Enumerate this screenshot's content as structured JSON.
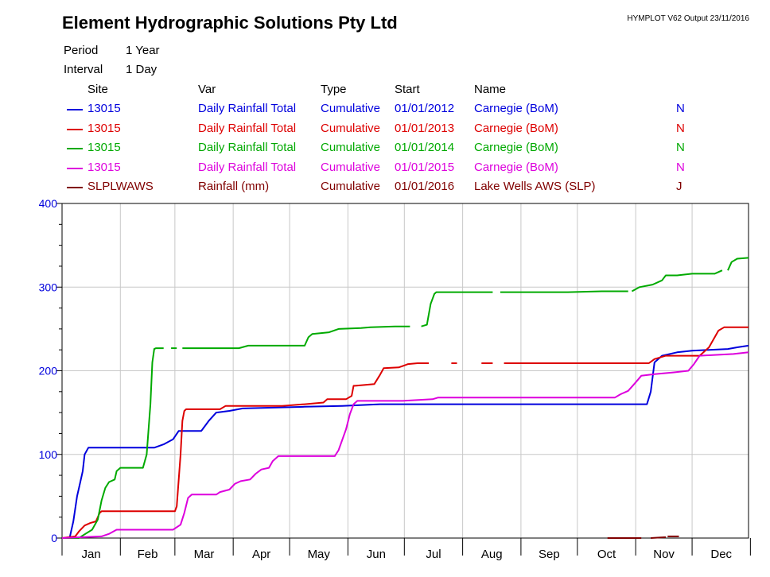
{
  "header": {
    "title": "Element Hydrographic Solutions Pty Ltd",
    "output": "HYMPLOT V62  Output 23/11/2016",
    "period_label": "Period",
    "period_value": "1 Year",
    "interval_label": "Interval",
    "interval_value": "1 Day"
  },
  "legend": {
    "columns": [
      "Site",
      "Var",
      "Type",
      "Start",
      "Name"
    ],
    "rows": [
      {
        "site": "13015",
        "var": "Daily Rainfall Total",
        "type": "Cumulative",
        "start": "01/01/2012",
        "name": "Carnegie (BoM)",
        "flag": "N",
        "color": "#0000dd"
      },
      {
        "site": "13015",
        "var": "Daily Rainfall Total",
        "type": "Cumulative",
        "start": "01/01/2013",
        "name": "Carnegie (BoM)",
        "flag": "N",
        "color": "#dd0000"
      },
      {
        "site": "13015",
        "var": "Daily Rainfall Total",
        "type": "Cumulative",
        "start": "01/01/2014",
        "name": "Carnegie (BoM)",
        "flag": "N",
        "color": "#00aa00"
      },
      {
        "site": "13015",
        "var": "Daily Rainfall Total",
        "type": "Cumulative",
        "start": "01/01/2015",
        "name": "Carnegie (BoM)",
        "flag": "N",
        "color": "#dd00dd"
      },
      {
        "site": "SLPLWAWS",
        "var": "Rainfall (mm)",
        "type": "Cumulative",
        "start": "01/01/2016",
        "name": "Lake Wells AWS (SLP)",
        "flag": "J",
        "color": "#800000"
      }
    ]
  },
  "chart_data": {
    "type": "line",
    "x_unit": "day of year",
    "xlim": [
      1,
      366
    ],
    "ylim": [
      0,
      400
    ],
    "yticks": [
      0,
      100,
      200,
      300,
      400
    ],
    "ytick_labels": [
      "0",
      "100",
      "200",
      "300",
      "400"
    ],
    "ytick_color": "#0000dd",
    "month_labels": [
      "Jan",
      "Feb",
      "Mar",
      "Apr",
      "May",
      "Jun",
      "Jul",
      "Aug",
      "Sep",
      "Oct",
      "Nov",
      "Dec"
    ],
    "grid": true,
    "series": [
      {
        "name": "13015 2012",
        "color": "#0000dd",
        "segments": [
          [
            [
              1,
              0
            ],
            [
              5,
              0
            ],
            [
              7,
              20
            ],
            [
              9,
              50
            ],
            [
              10,
              60
            ],
            [
              12,
              80
            ],
            [
              13,
              100
            ],
            [
              15,
              108
            ],
            [
              50,
              108
            ],
            [
              55,
              112
            ],
            [
              60,
              118
            ],
            [
              63,
              128
            ],
            [
              75,
              128
            ],
            [
              79,
              140
            ],
            [
              83,
              150
            ],
            [
              90,
              152
            ],
            [
              97,
              155
            ],
            [
              130,
              157
            ],
            [
              150,
              158
            ],
            [
              170,
              160
            ],
            [
              225,
              160
            ],
            [
              288,
              160
            ],
            [
              305,
              160
            ],
            [
              312,
              160
            ],
            [
              314,
              175
            ],
            [
              316,
              210
            ],
            [
              320,
              218
            ],
            [
              328,
              222
            ],
            [
              336,
              224
            ],
            [
              355,
              226
            ],
            [
              360,
              228
            ],
            [
              366,
              230
            ]
          ]
        ]
      },
      {
        "name": "13015 2013",
        "color": "#dd0000",
        "segments": [
          [
            [
              1,
              0
            ],
            [
              8,
              2
            ],
            [
              10,
              8
            ],
            [
              13,
              15
            ],
            [
              16,
              18
            ],
            [
              19,
              20
            ],
            [
              21,
              30
            ],
            [
              22,
              32
            ],
            [
              61,
              32
            ],
            [
              62,
              38
            ],
            [
              64,
              100
            ],
            [
              65,
              140
            ],
            [
              66,
              152
            ],
            [
              67,
              154
            ],
            [
              85,
              154
            ],
            [
              88,
              158
            ],
            [
              118,
              158
            ],
            [
              130,
              160
            ],
            [
              140,
              162
            ],
            [
              142,
              166
            ],
            [
              152,
              166
            ],
            [
              155,
              170
            ],
            [
              156,
              182
            ],
            [
              157,
              182
            ],
            [
              167,
              184
            ],
            [
              170,
              195
            ],
            [
              172,
              203
            ],
            [
              180,
              204
            ],
            [
              185,
              208
            ],
            [
              190,
              209
            ],
            [
              196,
              209
            ]
          ],
          [
            [
              208,
              209
            ],
            [
              211,
              209
            ]
          ],
          [
            [
              224,
              209
            ],
            [
              230,
              209
            ]
          ],
          [
            [
              236,
              209
            ],
            [
              313,
              209
            ],
            [
              316,
              214
            ],
            [
              322,
              218
            ],
            [
              340,
              218
            ],
            [
              345,
              228
            ],
            [
              350,
              248
            ],
            [
              353,
              252
            ],
            [
              366,
              252
            ]
          ]
        ]
      },
      {
        "name": "13015 2014",
        "color": "#00aa00",
        "segments": [
          [
            [
              1,
              0
            ],
            [
              10,
              0
            ],
            [
              12,
              3
            ],
            [
              17,
              10
            ],
            [
              20,
              22
            ],
            [
              22,
              45
            ],
            [
              24,
              60
            ],
            [
              26,
              67
            ],
            [
              29,
              70
            ],
            [
              30,
              80
            ],
            [
              32,
              84
            ],
            [
              44,
              84
            ],
            [
              46,
              100
            ],
            [
              48,
              160
            ],
            [
              49,
              210
            ],
            [
              50,
              226
            ],
            [
              51,
              227
            ],
            [
              55,
              227
            ]
          ],
          [
            [
              59,
              227
            ],
            [
              62,
              227
            ]
          ],
          [
            [
              65,
              227
            ],
            [
              95,
              227
            ],
            [
              100,
              230
            ],
            [
              130,
              230
            ],
            [
              132,
              240
            ],
            [
              134,
              244
            ],
            [
              143,
              246
            ],
            [
              148,
              250
            ],
            [
              160,
              251
            ],
            [
              165,
              252
            ],
            [
              178,
              253
            ],
            [
              186,
              253
            ]
          ],
          [
            [
              192,
              253
            ],
            [
              195,
              255
            ],
            [
              197,
              280
            ],
            [
              199,
              292
            ],
            [
              200,
              294
            ],
            [
              230,
              294
            ]
          ],
          [
            [
              234,
              294
            ],
            [
              270,
              294
            ],
            [
              288,
              295
            ],
            [
              302,
              295
            ]
          ],
          [
            [
              304,
              295
            ],
            [
              308,
              300
            ],
            [
              315,
              303
            ],
            [
              320,
              308
            ],
            [
              322,
              314
            ],
            [
              328,
              314
            ],
            [
              336,
              316
            ],
            [
              348,
              316
            ],
            [
              352,
              320
            ]
          ],
          [
            [
              355,
              320
            ],
            [
              357,
              330
            ],
            [
              360,
              334
            ],
            [
              366,
              335
            ]
          ]
        ]
      },
      {
        "name": "13015 2015",
        "color": "#dd00dd",
        "segments": [
          [
            [
              1,
              0
            ],
            [
              22,
              2
            ],
            [
              26,
              5
            ],
            [
              30,
              10
            ],
            [
              60,
              10
            ],
            [
              64,
              16
            ],
            [
              66,
              30
            ],
            [
              68,
              48
            ],
            [
              70,
              52
            ],
            [
              83,
              52
            ],
            [
              85,
              55
            ],
            [
              90,
              58
            ],
            [
              93,
              65
            ],
            [
              96,
              68
            ],
            [
              101,
              70
            ],
            [
              104,
              77
            ],
            [
              107,
              82
            ],
            [
              111,
              84
            ],
            [
              113,
              92
            ],
            [
              116,
              98
            ],
            [
              125,
              98
            ],
            [
              146,
              98
            ],
            [
              148,
              105
            ],
            [
              152,
              130
            ],
            [
              154,
              148
            ],
            [
              156,
              160
            ],
            [
              158,
              164
            ],
            [
              182,
              164
            ],
            [
              198,
              166
            ],
            [
              201,
              168
            ],
            [
              220,
              168
            ],
            [
              295,
              168
            ],
            [
              298,
              172
            ],
            [
              302,
              176
            ],
            [
              306,
              186
            ],
            [
              309,
              194
            ],
            [
              316,
              196
            ],
            [
              326,
              198
            ],
            [
              334,
              200
            ],
            [
              337,
              208
            ],
            [
              340,
              218
            ],
            [
              358,
              220
            ],
            [
              366,
              222
            ]
          ]
        ]
      },
      {
        "name": "SLPLWAWS",
        "color": "#800000",
        "segments": [
          [
            [
              291,
              0
            ],
            [
              309,
              0
            ]
          ],
          [
            [
              314,
              0
            ],
            [
              322,
              1
            ]
          ],
          [
            [
              323,
              2
            ],
            [
              329,
              2
            ]
          ]
        ]
      }
    ]
  }
}
